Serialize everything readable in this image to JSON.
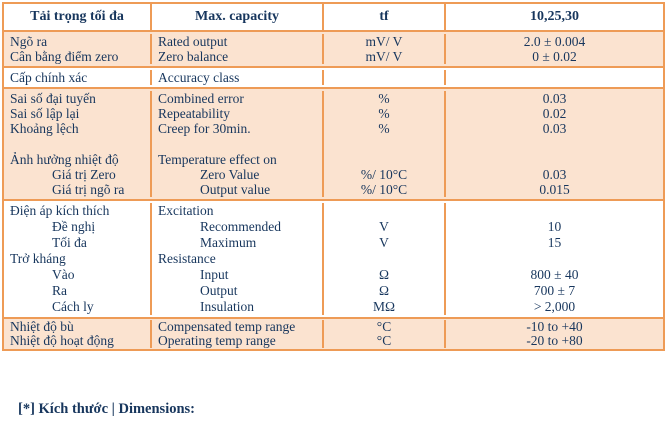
{
  "colors": {
    "border_orange": "#EE9B56",
    "peach_row_bg": "#FBE3D0",
    "text_navy": "#17365D",
    "white_bg": "#FFFFFF"
  },
  "table": {
    "header": {
      "c1": "Tải trọng tối đa",
      "c2": "Max. capacity",
      "c3": "tf",
      "c4": "10,25,30"
    },
    "sections": [
      {
        "bg": "peach",
        "rows": [
          {
            "c1": "Ngõ ra",
            "c2": "Rated output",
            "c3": "mV/ V",
            "c4": "2.0 ± 0.004"
          },
          {
            "c1": "Cân bằng điểm zero",
            "c2": "Zero balance",
            "c3": "mV/ V",
            "c4": "0 ± 0.02"
          }
        ]
      },
      {
        "bg": "white",
        "rows": [
          {
            "c1": "Cấp chính xác",
            "c2": "Accuracy class",
            "c3": "",
            "c4": ""
          }
        ]
      },
      {
        "bg": "peach",
        "rows": [
          {
            "c1": "Sai số đại tuyến",
            "c2": "Combined error",
            "c3": "%",
            "c4": "0.03"
          },
          {
            "c1": "Sai số lập lại",
            "c2": "Repeatability",
            "c3": "%",
            "c4": "0.02"
          },
          {
            "c1": "Khoảng lệch",
            "c2": "Creep for 30min.",
            "c3": "%",
            "c4": "0.03"
          },
          {
            "spacer": true,
            "c1": "",
            "c2": "",
            "c3": "",
            "c4": ""
          },
          {
            "c1": "Ảnh hưởng nhiệt độ",
            "c2": "Temperature effect on",
            "c3": "",
            "c4": ""
          },
          {
            "c1": "Giá trị Zero",
            "i1": true,
            "c2": "Zero Value",
            "i2": true,
            "c3": "%/ 10°C",
            "c4": "0.03"
          },
          {
            "c1": "Giá trị ngõ ra",
            "i1": true,
            "c2": "Output value",
            "i2": true,
            "c3": "%/ 10°C",
            "c4": "0.015"
          }
        ]
      },
      {
        "bg": "white",
        "rows": [
          {
            "c1": "Điện áp kích thích",
            "c2": "Excitation",
            "c3": "",
            "c4": ""
          },
          {
            "c1": "Đề nghị",
            "i1": true,
            "c2": "Recommended",
            "i2": true,
            "c3": "V",
            "c4": "10"
          },
          {
            "c1": "Tối đa",
            "i1": true,
            "c2": "Maximum",
            "i2": true,
            "c3": "V",
            "c4": "15"
          },
          {
            "c1": "Trở kháng",
            "c2": "Resistance",
            "c3": "",
            "c4": ""
          },
          {
            "c1": "Vào",
            "i1": true,
            "c2": "Input",
            "i2": true,
            "c3": "Ω",
            "c4": "800 ± 40"
          },
          {
            "c1": "Ra",
            "i1": true,
            "c2": "Output",
            "i2": true,
            "c3": "Ω",
            "c4": "700 ± 7"
          },
          {
            "c1": "Cách ly",
            "i1": true,
            "c2": "Insulation",
            "i2": true,
            "c3": "MΩ",
            "c4": "> 2,000"
          }
        ]
      },
      {
        "bg": "peach",
        "rows": [
          {
            "c1": "Nhiệt độ bù",
            "c2": "Compensated temp range",
            "c3": "°C",
            "c4": "-10 to +40"
          },
          {
            "c1": "Nhiệt độ hoạt động",
            "c2": "Operating temp range",
            "c3": "°C",
            "c4": "-20 to +80"
          }
        ]
      }
    ]
  },
  "footer": {
    "label": "[*] Kích thước | Dimensions:"
  }
}
